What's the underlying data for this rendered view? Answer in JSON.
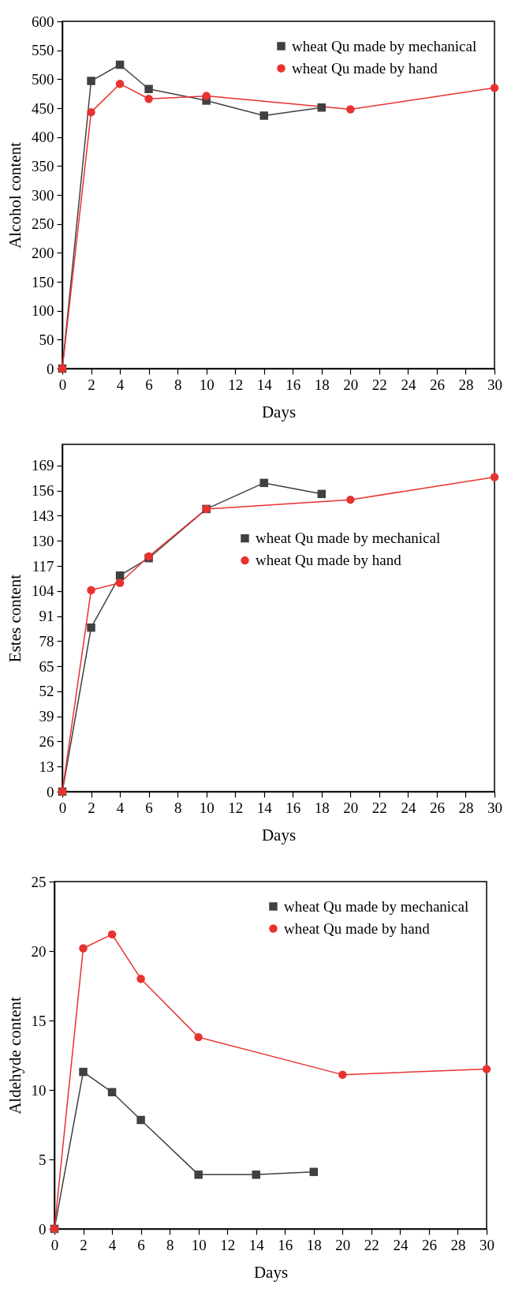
{
  "chart_data": [
    {
      "type": "line",
      "xlabel": "Days",
      "ylabel": "Alcohol content",
      "xlim": [
        0,
        30
      ],
      "xticks": [
        0,
        2,
        4,
        6,
        8,
        10,
        12,
        14,
        16,
        18,
        20,
        22,
        24,
        26,
        28,
        30
      ],
      "ylim": [
        0,
        600
      ],
      "yticks": [
        0,
        50,
        100,
        150,
        200,
        250,
        300,
        350,
        400,
        450,
        500,
        550,
        600
      ],
      "legend": "top right",
      "grid": false,
      "series": [
        {
          "name": "wheat Qu made by mechanical",
          "color": "#404040",
          "marker": "square",
          "x": [
            0,
            2,
            4,
            6,
            10,
            14,
            18
          ],
          "values": [
            0,
            497,
            525,
            483,
            463,
            437,
            451
          ]
        },
        {
          "name": "wheat Qu made by hand",
          "color": "#e8322f",
          "marker": "circle",
          "x": [
            0,
            2,
            4,
            6,
            10,
            20,
            30
          ],
          "values": [
            0,
            443,
            492,
            466,
            471,
            448,
            485
          ]
        }
      ]
    },
    {
      "type": "line",
      "xlabel": "Days",
      "ylabel": "Estes content",
      "xlim": [
        0,
        30
      ],
      "xticks": [
        0,
        2,
        4,
        6,
        8,
        10,
        12,
        14,
        16,
        18,
        20,
        22,
        24,
        26,
        28,
        30
      ],
      "ylim": [
        0,
        180
      ],
      "yticks": [
        0,
        13,
        26,
        39,
        52,
        65,
        78,
        91,
        104,
        117,
        130,
        143,
        156,
        169
      ],
      "legend": "right",
      "grid": false,
      "series": [
        {
          "name": "wheat Qu made by mechanical",
          "color": "#404040",
          "marker": "square",
          "x": [
            0,
            2,
            4,
            6,
            10,
            14,
            18
          ],
          "values": [
            0,
            85,
            112,
            121,
            146.5,
            160,
            154.3
          ]
        },
        {
          "name": "wheat Qu made by hand",
          "color": "#e8322f",
          "marker": "circle",
          "x": [
            0,
            2,
            4,
            6,
            10,
            20,
            30
          ],
          "values": [
            0,
            104.4,
            108.2,
            121.9,
            146.5,
            151.3,
            163
          ]
        }
      ]
    },
    {
      "type": "line",
      "xlabel": "Days",
      "ylabel": "Aldehyde content",
      "xlim": [
        0,
        30
      ],
      "xticks": [
        0,
        2,
        4,
        6,
        8,
        10,
        12,
        14,
        16,
        18,
        20,
        22,
        24,
        26,
        28,
        30
      ],
      "ylim": [
        0,
        25
      ],
      "yticks": [
        0,
        5,
        10,
        15,
        20,
        25
      ],
      "legend": "top right",
      "grid": false,
      "series": [
        {
          "name": "wheat Qu made by mechanical",
          "color": "#404040",
          "marker": "square",
          "x": [
            0,
            2,
            4,
            6,
            10,
            14,
            18
          ],
          "values": [
            0,
            11.3,
            9.84,
            7.84,
            3.9,
            3.9,
            4.1
          ]
        },
        {
          "name": "wheat Qu made by hand",
          "color": "#e8322f",
          "marker": "circle",
          "x": [
            0,
            2,
            4,
            6,
            10,
            20,
            30
          ],
          "values": [
            0,
            20.2,
            21.2,
            18.0,
            13.8,
            11.1,
            11.5
          ]
        }
      ]
    }
  ]
}
